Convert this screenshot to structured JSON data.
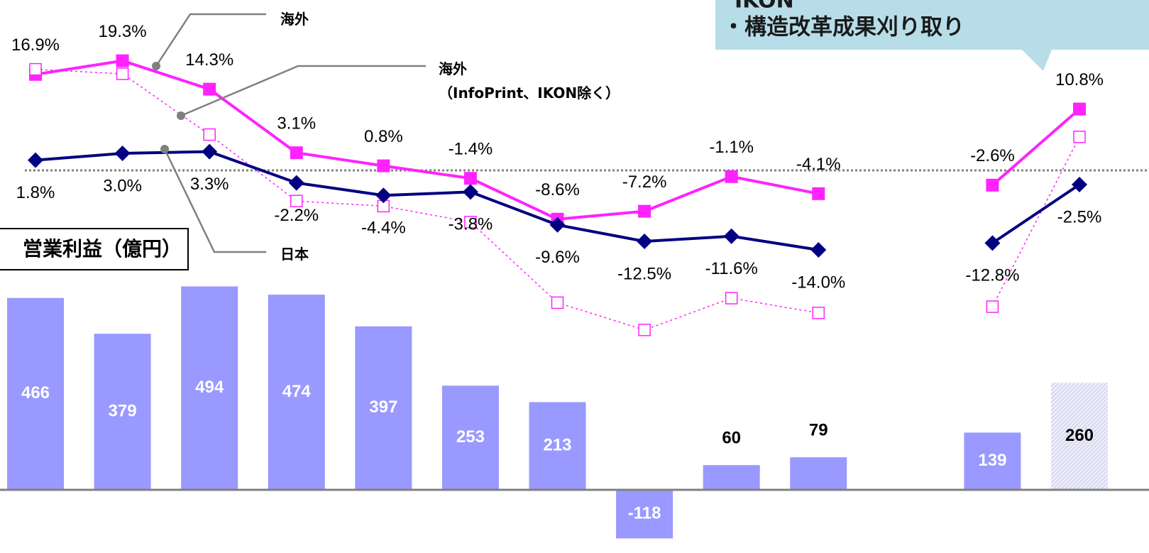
{
  "chart_data": {
    "type": "combo",
    "categories": [
      null,
      null,
      null,
      null,
      null,
      null,
      null,
      null,
      null,
      null,
      null,
      null,
      null
    ],
    "ylim": [
      -30,
      25
    ],
    "y2lim": [
      -150,
      1100
    ],
    "annotations": [
      "IKON",
      "・構造改革成果刈り取り"
    ],
    "series": [
      {
        "name": "営業利益（億円）",
        "type": "bar",
        "axis": "y2",
        "color": "#9999ff",
        "hatched": [
          12
        ],
        "values": [
          466,
          379,
          494,
          474,
          397,
          253,
          213,
          -118,
          60,
          79,
          null,
          139,
          260
        ]
      },
      {
        "name": "海外",
        "type": "line",
        "color": "#ff22ff",
        "marker": "square",
        "line_style": "solid",
        "label_position": "above",
        "values": [
          16.9,
          19.3,
          14.3,
          3.1,
          0.8,
          -1.4,
          -8.6,
          -7.2,
          -1.1,
          -4.1,
          null,
          -2.6,
          10.8
        ],
        "value_labels": [
          "16.9%",
          "19.3%",
          "14.3%",
          "3.1%",
          "0.8%",
          "-1.4%",
          "-8.6%",
          "-7.2%",
          "-1.1%",
          "-4.1%",
          null,
          "-2.6%",
          "10.8%"
        ]
      },
      {
        "name": "海外\n（InfoPrint、IKON除く）",
        "type": "line",
        "color": "#ff22ff",
        "marker": "open-square",
        "line_style": "dotted",
        "values": [
          17.8,
          17.0,
          6.3,
          -5.4,
          -6.3,
          -9.1,
          -23.3,
          -28.1,
          -22.5,
          -25.1,
          null,
          -24.0,
          5.9
        ]
      },
      {
        "name": "日本",
        "type": "line",
        "color": "#000080",
        "marker": "diamond",
        "line_style": "solid",
        "label_position": "below",
        "values": [
          1.8,
          3.0,
          3.3,
          -2.2,
          -4.4,
          -3.8,
          -9.6,
          -12.5,
          -11.6,
          -14.0,
          null,
          -12.8,
          -2.5
        ],
        "value_labels": [
          "1.8%",
          "3.0%",
          "3.3%",
          "-2.2%",
          "-4.4%",
          "-3.8%",
          "-9.6%",
          "-12.5%",
          "-11.6%",
          "-14.0%",
          null,
          "-12.8%",
          "-2.5%"
        ]
      }
    ]
  }
}
